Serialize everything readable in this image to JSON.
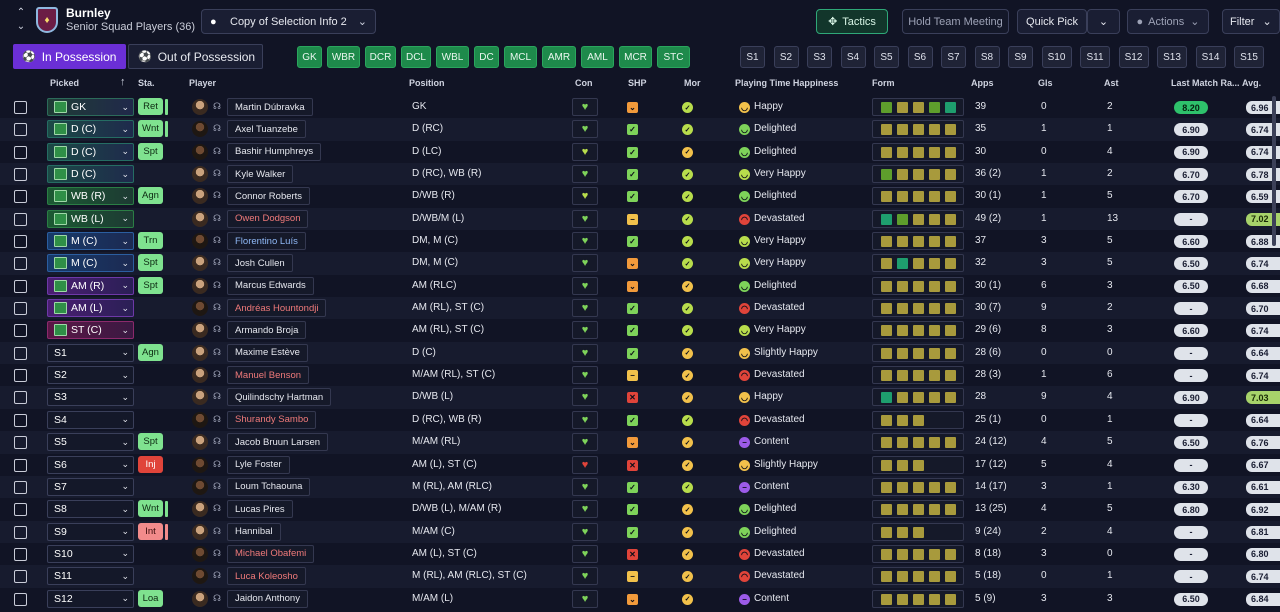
{
  "header": {
    "club": "Burnley",
    "squad": "Senior Squad Players (36)",
    "view": "Copy of Selection Info 2",
    "buttons": {
      "tactics": "Tactics",
      "hold": "Hold Team Meeting",
      "quick": "Quick Pick",
      "actions": "Actions",
      "filter": "Filter"
    }
  },
  "possession": {
    "in": "In Possession",
    "out": "Out of Possession"
  },
  "positions": [
    "GK",
    "WBR",
    "DCR",
    "DCL",
    "WBL",
    "DC",
    "MCL",
    "AMR",
    "AML",
    "MCR",
    "STC"
  ],
  "slots": [
    "S1",
    "S2",
    "S3",
    "S4",
    "S5",
    "S6",
    "S7",
    "S8",
    "S9",
    "S10",
    "S11",
    "S12",
    "S13",
    "S14",
    "S15"
  ],
  "columns": {
    "picked": "Picked",
    "sta": "Sta.",
    "player": "Player",
    "position": "Position",
    "con": "Con",
    "shp": "SHP",
    "mor": "Mor",
    "pth": "Playing Time Happiness",
    "form": "Form",
    "apps": "Apps",
    "gls": "Gls",
    "ast": "Ast",
    "lmr": "Last Match Ra...",
    "avg": "Avg."
  },
  "colors": {
    "green": "#7ed35a",
    "yellow": "#f2c14b",
    "orange": "#f29a3b",
    "red": "#e0443a",
    "purple": "#9c5be8",
    "lime": "#b8dd4c",
    "formOlive": "#a89a3c",
    "formGreen": "#5e9e2c",
    "formTeal": "#1e9e6e"
  },
  "rows": [
    {
      "picked": "GK",
      "cls": "gk",
      "sta": "Ret",
      "bar": true,
      "name": "Martin Dúbravka",
      "nc": "",
      "dark": false,
      "pos": "GK",
      "con": "green",
      "shp": "orange",
      "mor": "green",
      "pth": "Happy",
      "pthc": "yellow",
      "form": [
        "g",
        "y",
        "y",
        "g",
        "t"
      ],
      "apps": "39",
      "gls": "0",
      "ast": "2",
      "lmr": "8.20",
      "lmrhi": true,
      "avg": "6.96"
    },
    {
      "picked": "D (C)",
      "cls": "def",
      "sta": "Wnt",
      "bar": true,
      "name": "Axel Tuanzebe",
      "nc": "",
      "dark": true,
      "pos": "D (RC)",
      "con": "green",
      "shp": "green",
      "mor": "green",
      "pth": "Delighted",
      "pthc": "green",
      "form": [
        "y",
        "y",
        "y",
        "y",
        "y"
      ],
      "apps": "35",
      "gls": "1",
      "ast": "1",
      "lmr": "6.90",
      "avg": "6.74"
    },
    {
      "picked": "D (C)",
      "cls": "def",
      "sta": "Spt",
      "bar": false,
      "name": "Bashir Humphreys",
      "nc": "",
      "dark": true,
      "pos": "D (LC)",
      "con": "lime",
      "shp": "green",
      "mor": "yellow",
      "pth": "Delighted",
      "pthc": "green",
      "form": [
        "y",
        "y",
        "y",
        "y",
        "y"
      ],
      "apps": "30",
      "gls": "0",
      "ast": "4",
      "lmr": "6.90",
      "avg": "6.74"
    },
    {
      "picked": "D (C)",
      "cls": "def",
      "sta": "",
      "bar": false,
      "name": "Kyle Walker",
      "nc": "",
      "dark": false,
      "pos": "D (RC), WB (R)",
      "con": "green",
      "shp": "green",
      "mor": "green",
      "pth": "Very Happy",
      "pthc": "lime",
      "form": [
        "g",
        "y",
        "y",
        "y",
        "y"
      ],
      "apps": "36 (2)",
      "gls": "1",
      "ast": "2",
      "lmr": "6.70",
      "avg": "6.78"
    },
    {
      "picked": "WB (R)",
      "cls": "wb",
      "sta": "Agn",
      "bar": false,
      "name": "Connor Roberts",
      "nc": "",
      "dark": false,
      "pos": "D/WB (R)",
      "con": "lime",
      "shp": "green",
      "mor": "green",
      "pth": "Delighted",
      "pthc": "green",
      "form": [
        "y",
        "y",
        "y",
        "y",
        "y"
      ],
      "apps": "30 (1)",
      "gls": "1",
      "ast": "5",
      "lmr": "6.70",
      "avg": "6.59"
    },
    {
      "picked": "WB (L)",
      "cls": "wb",
      "sta": "",
      "bar": false,
      "name": "Owen Dodgson",
      "nc": "red",
      "dark": false,
      "pos": "D/WB/M (L)",
      "con": "green",
      "shp": "yellow",
      "mor": "green",
      "pth": "Devastated",
      "pthc": "red",
      "form": [
        "t",
        "g",
        "y",
        "y",
        "y"
      ],
      "apps": "49 (2)",
      "gls": "1",
      "ast": "13",
      "lmr": "-",
      "avg": "7.02",
      "avghi": true
    },
    {
      "picked": "M (C)",
      "cls": "mid",
      "sta": "Trn",
      "bar": false,
      "name": "Florentino Luís",
      "nc": "blue",
      "dark": true,
      "pos": "DM, M (C)",
      "con": "green",
      "shp": "green",
      "mor": "green",
      "pth": "Very Happy",
      "pthc": "lime",
      "form": [
        "y",
        "y",
        "y",
        "y",
        "y"
      ],
      "apps": "37",
      "gls": "3",
      "ast": "5",
      "lmr": "6.60",
      "avg": "6.88"
    },
    {
      "picked": "M (C)",
      "cls": "mid",
      "sta": "Spt",
      "bar": false,
      "name": "Josh Cullen",
      "nc": "",
      "dark": false,
      "pos": "DM, M (C)",
      "con": "green",
      "shp": "orange",
      "mor": "green",
      "pth": "Very Happy",
      "pthc": "lime",
      "form": [
        "y",
        "t",
        "y",
        "y",
        "y"
      ],
      "apps": "32",
      "gls": "3",
      "ast": "5",
      "lmr": "6.50",
      "avg": "6.74"
    },
    {
      "picked": "AM (R)",
      "cls": "am",
      "sta": "Spt",
      "bar": false,
      "name": "Marcus Edwards",
      "nc": "",
      "dark": false,
      "pos": "AM (RLC)",
      "con": "green",
      "shp": "orange",
      "mor": "yellow",
      "pth": "Delighted",
      "pthc": "green",
      "form": [
        "y",
        "y",
        "y",
        "y",
        "y"
      ],
      "apps": "30 (1)",
      "gls": "6",
      "ast": "3",
      "lmr": "6.50",
      "avg": "6.68"
    },
    {
      "picked": "AM (L)",
      "cls": "am",
      "sta": "",
      "bar": false,
      "name": "Andréas Hountondji",
      "nc": "red",
      "dark": true,
      "pos": "AM (RL), ST (C)",
      "con": "green",
      "shp": "green",
      "mor": "green",
      "pth": "Devastated",
      "pthc": "red",
      "form": [
        "y",
        "y",
        "y",
        "y",
        "y"
      ],
      "apps": "30 (7)",
      "gls": "9",
      "ast": "2",
      "lmr": "-",
      "avg": "6.70"
    },
    {
      "picked": "ST (C)",
      "cls": "st",
      "sta": "",
      "bar": false,
      "name": "Armando Broja",
      "nc": "",
      "dark": false,
      "pos": "AM (RL), ST (C)",
      "con": "green",
      "shp": "green",
      "mor": "green",
      "pth": "Very Happy",
      "pthc": "lime",
      "form": [
        "y",
        "y",
        "y",
        "y",
        "y"
      ],
      "apps": "29 (6)",
      "gls": "8",
      "ast": "3",
      "lmr": "6.60",
      "avg": "6.74"
    },
    {
      "picked": "S1",
      "cls": "",
      "sta": "Agn",
      "bar": false,
      "name": "Maxime Estève",
      "nc": "",
      "dark": false,
      "pos": "D (C)",
      "con": "green",
      "shp": "green",
      "mor": "yellow",
      "pth": "Slightly Happy",
      "pthc": "yellow",
      "form": [
        "y",
        "y",
        "y",
        "y",
        "y"
      ],
      "apps": "28 (6)",
      "gls": "0",
      "ast": "0",
      "lmr": "-",
      "avg": "6.64"
    },
    {
      "picked": "S2",
      "cls": "",
      "sta": "",
      "bar": false,
      "name": "Manuel Benson",
      "nc": "red",
      "dark": false,
      "pos": "M/AM (RL), ST (C)",
      "con": "green",
      "shp": "yellow",
      "mor": "yellow",
      "pth": "Devastated",
      "pthc": "red",
      "form": [
        "y",
        "y",
        "y",
        "y",
        "y"
      ],
      "apps": "28 (3)",
      "gls": "1",
      "ast": "6",
      "lmr": "-",
      "avg": "6.74"
    },
    {
      "picked": "S3",
      "cls": "",
      "sta": "",
      "bar": false,
      "name": "Quilindschy Hartman",
      "nc": "",
      "dark": false,
      "pos": "D/WB (L)",
      "con": "green",
      "shp": "red",
      "mor": "yellow",
      "pth": "Happy",
      "pthc": "yellow",
      "form": [
        "t",
        "y",
        "y",
        "y",
        "y"
      ],
      "apps": "28",
      "gls": "9",
      "ast": "4",
      "lmr": "6.90",
      "avg": "7.03",
      "avghi": true
    },
    {
      "picked": "S4",
      "cls": "",
      "sta": "",
      "bar": false,
      "name": "Shurandy Sambo",
      "nc": "red",
      "dark": true,
      "pos": "D (RC), WB (R)",
      "con": "green",
      "shp": "green",
      "mor": "green",
      "pth": "Devastated",
      "pthc": "red",
      "form": [
        "y",
        "y",
        "y"
      ],
      "apps": "25 (1)",
      "gls": "0",
      "ast": "1",
      "lmr": "-",
      "avg": "6.64"
    },
    {
      "picked": "S5",
      "cls": "",
      "sta": "Spt",
      "bar": false,
      "name": "Jacob Bruun Larsen",
      "nc": "",
      "dark": false,
      "pos": "M/AM (RL)",
      "con": "green",
      "shp": "orange",
      "mor": "yellow",
      "pth": "Content",
      "pthc": "purple",
      "form": [
        "y",
        "y",
        "y",
        "y",
        "y"
      ],
      "apps": "24 (12)",
      "gls": "4",
      "ast": "5",
      "lmr": "6.50",
      "avg": "6.76"
    },
    {
      "picked": "S6",
      "cls": "",
      "sta": "Inj",
      "bar": false,
      "name": "Lyle Foster",
      "nc": "",
      "dark": true,
      "pos": "AM (L), ST (C)",
      "con": "red",
      "shp": "red",
      "mor": "yellow",
      "pth": "Slightly Happy",
      "pthc": "yellow",
      "form": [
        "y",
        "y",
        "y"
      ],
      "apps": "17 (12)",
      "gls": "5",
      "ast": "4",
      "lmr": "-",
      "avg": "6.67"
    },
    {
      "picked": "S7",
      "cls": "",
      "sta": "",
      "bar": false,
      "name": "Loum Tchaouna",
      "nc": "",
      "dark": true,
      "pos": "M (RL), AM (RLC)",
      "con": "green",
      "shp": "green",
      "mor": "green",
      "pth": "Content",
      "pthc": "purple",
      "form": [
        "y",
        "y",
        "y",
        "y",
        "y"
      ],
      "apps": "14 (17)",
      "gls": "3",
      "ast": "1",
      "lmr": "6.30",
      "avg": "6.61"
    },
    {
      "picked": "S8",
      "cls": "",
      "sta": "Wnt",
      "bar": true,
      "name": "Lucas Pires",
      "nc": "",
      "dark": false,
      "pos": "D/WB (L), M/AM (R)",
      "con": "green",
      "shp": "green",
      "mor": "yellow",
      "pth": "Delighted",
      "pthc": "green",
      "form": [
        "y",
        "y",
        "y",
        "y",
        "y"
      ],
      "apps": "13 (25)",
      "gls": "4",
      "ast": "5",
      "lmr": "6.80",
      "avg": "6.92"
    },
    {
      "picked": "S9",
      "cls": "",
      "sta": "Int",
      "bar": true,
      "name": "Hannibal",
      "nc": "",
      "dark": false,
      "pos": "M/AM (C)",
      "con": "green",
      "shp": "green",
      "mor": "yellow",
      "pth": "Delighted",
      "pthc": "green",
      "form": [
        "y",
        "y",
        "y"
      ],
      "apps": "9 (24)",
      "gls": "2",
      "ast": "4",
      "lmr": "-",
      "avg": "6.81"
    },
    {
      "picked": "S10",
      "cls": "",
      "sta": "",
      "bar": false,
      "name": "Michael Obafemi",
      "nc": "red",
      "dark": true,
      "pos": "AM (L), ST (C)",
      "con": "green",
      "shp": "red",
      "mor": "yellow",
      "pth": "Devastated",
      "pthc": "red",
      "form": [
        "y",
        "y",
        "y",
        "y",
        "y"
      ],
      "apps": "8 (18)",
      "gls": "3",
      "ast": "0",
      "lmr": "-",
      "avg": "6.80"
    },
    {
      "picked": "S11",
      "cls": "",
      "sta": "",
      "bar": false,
      "name": "Luca Koleosho",
      "nc": "red",
      "dark": true,
      "pos": "M (RL), AM (RLC), ST (C)",
      "con": "green",
      "shp": "yellow",
      "mor": "yellow",
      "pth": "Devastated",
      "pthc": "red",
      "form": [
        "y",
        "y",
        "y",
        "y",
        "y"
      ],
      "apps": "5 (18)",
      "gls": "0",
      "ast": "1",
      "lmr": "-",
      "avg": "6.74"
    },
    {
      "picked": "S12",
      "cls": "",
      "sta": "Loa",
      "bar": false,
      "name": "Jaidon Anthony",
      "nc": "",
      "dark": false,
      "pos": "M/AM (L)",
      "con": "green",
      "shp": "orange",
      "mor": "yellow",
      "pth": "Content",
      "pthc": "purple",
      "form": [
        "y",
        "y",
        "y",
        "y",
        "y"
      ],
      "apps": "5 (9)",
      "gls": "3",
      "ast": "3",
      "lmr": "6.50",
      "avg": "6.84"
    }
  ]
}
